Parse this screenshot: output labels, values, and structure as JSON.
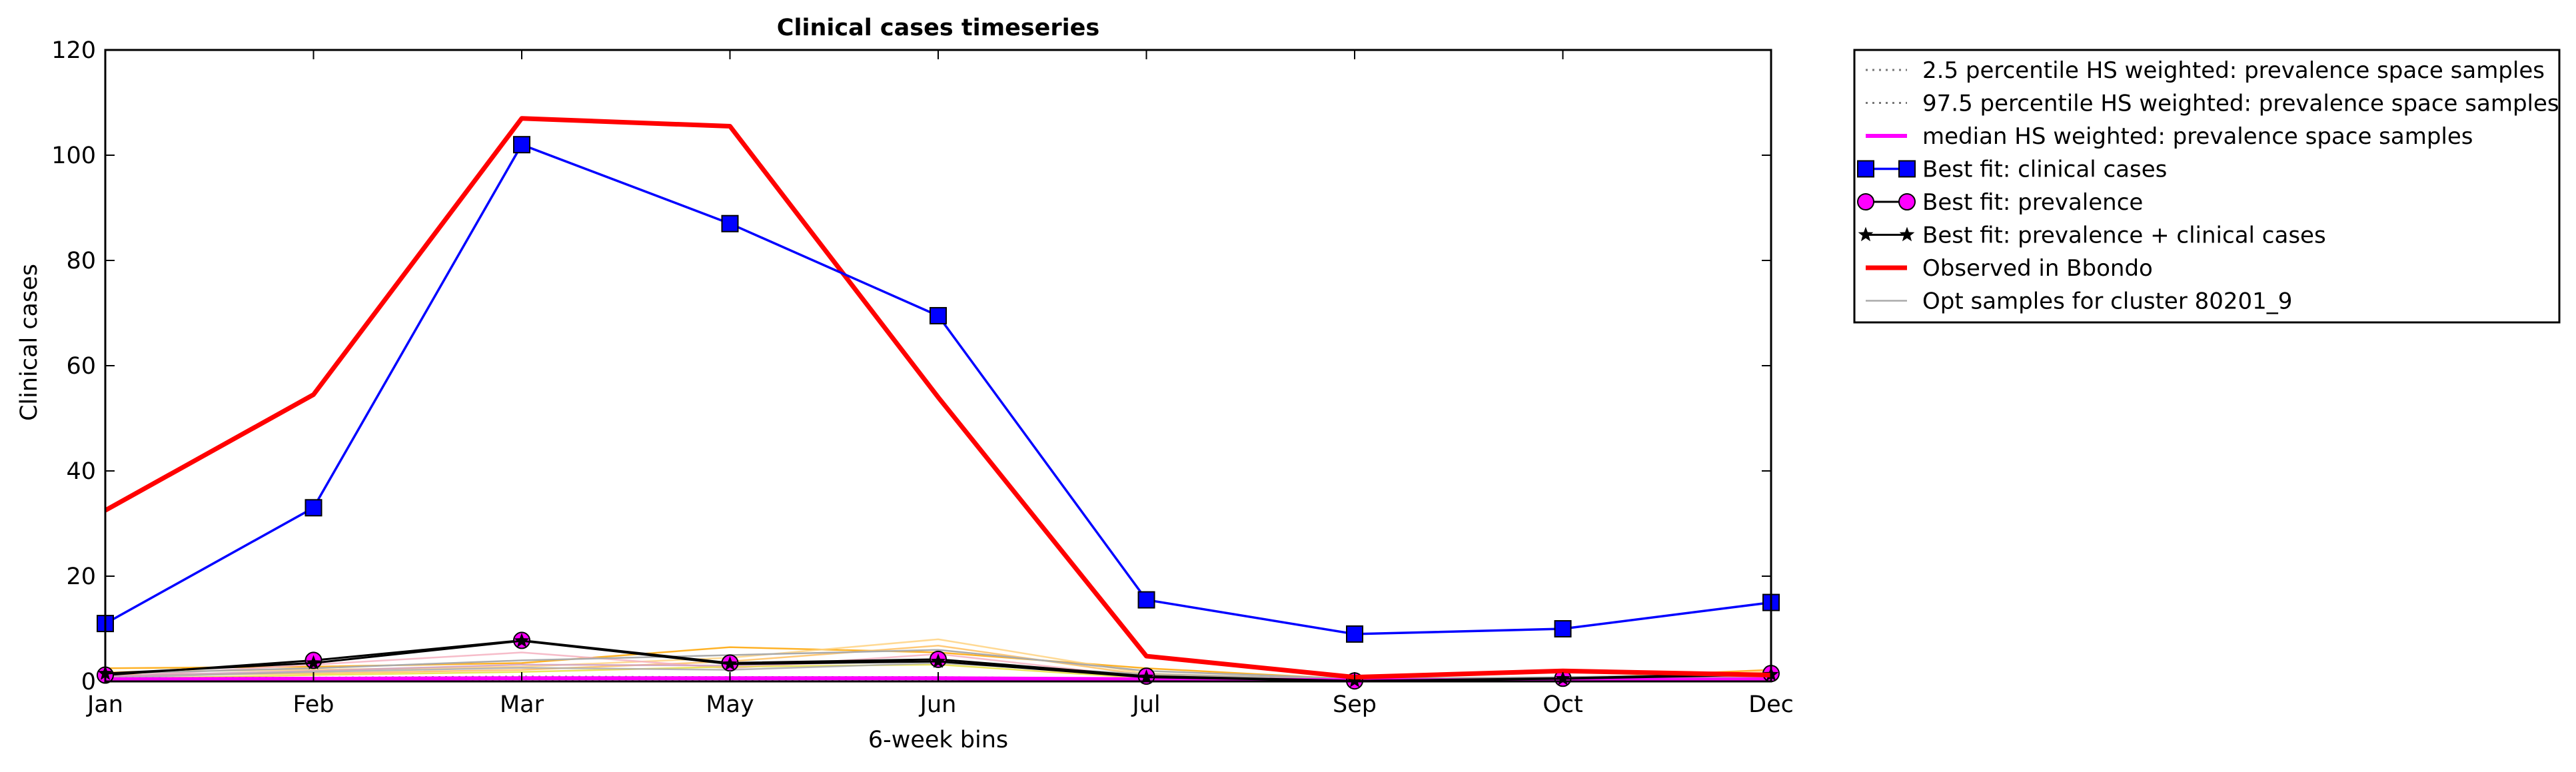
{
  "chart_data": {
    "type": "line",
    "title": "Clinical cases timeseries",
    "xlabel": "6-week bins",
    "ylabel": "Clinical cases",
    "ylim": [
      0,
      120
    ],
    "yticks": [
      0,
      20,
      40,
      60,
      80,
      100,
      120
    ],
    "categories": [
      "Jan",
      "Feb",
      "Mar",
      "May",
      "Jun",
      "Jul",
      "Sep",
      "Oct",
      "Dec"
    ],
    "grid": false,
    "legend_position": "outside-right",
    "colors": {
      "percentile": "#777777",
      "median": "#ff00ff",
      "best_fit_clinical": "#0000ff",
      "best_fit_prevalence": "#ff00ff",
      "best_fit_combined": "#000000",
      "observed": "#ff0000",
      "opt_samples": "#aaaaaa"
    },
    "series": [
      {
        "name": "2.5 percentile HS weighted: prevalence space samples",
        "style": "dotted",
        "values": [
          0.3,
          0.3,
          0.4,
          0.3,
          0.3,
          0.2,
          0.1,
          0.1,
          0.2
        ]
      },
      {
        "name": "97.5 percentile HS weighted: prevalence space samples",
        "style": "dotted",
        "values": [
          0.6,
          0.7,
          0.9,
          0.8,
          0.8,
          0.5,
          0.3,
          0.3,
          0.5
        ]
      },
      {
        "name": "median HS weighted: prevalence space samples",
        "style": "median",
        "values": [
          0.4,
          0.5,
          0.6,
          0.6,
          0.6,
          0.4,
          0.2,
          0.2,
          0.4
        ]
      },
      {
        "name": "Best fit: clinical cases",
        "style": "square",
        "values": [
          11,
          33,
          102,
          87,
          69.5,
          15.5,
          9,
          10,
          15
        ]
      },
      {
        "name": "Best fit: prevalence",
        "style": "circle",
        "values": [
          1.2,
          4,
          7.8,
          3.5,
          4.2,
          1,
          0.1,
          0.6,
          1.5
        ]
      },
      {
        "name": "Best fit: prevalence + clinical cases",
        "style": "star",
        "values": [
          1.5,
          3.5,
          7.7,
          3.3,
          3.8,
          0.8,
          0.1,
          0.5,
          1.3
        ]
      },
      {
        "name": "Observed in Bbondo",
        "style": "observed",
        "values": [
          32.5,
          54.5,
          107,
          105.5,
          54,
          4.8,
          0.8,
          2,
          1.2
        ]
      },
      {
        "name": "Opt samples for cluster 80201_9",
        "style": "thin",
        "values": [
          1.5,
          2.5,
          4,
          5,
          6,
          2,
          0.5,
          0.8,
          1.5
        ]
      }
    ],
    "opt_sample_lines": [
      {
        "color": "#ffa500",
        "values": [
          2.5,
          2.8,
          3.5,
          6.5,
          5.5,
          2.5,
          0.4,
          0.5,
          2.2
        ]
      },
      {
        "color": "#ffd280",
        "values": [
          1.8,
          2.2,
          2.8,
          4.5,
          8,
          1.5,
          0.3,
          0.4,
          1.8
        ]
      },
      {
        "color": "#ffc060",
        "values": [
          1.2,
          1.5,
          2.2,
          3.8,
          6.8,
          1.2,
          0.2,
          0.3,
          1.2
        ]
      },
      {
        "color": "#f5b0c0",
        "values": [
          0.8,
          3.2,
          5.5,
          2.5,
          5.2,
          0.8,
          0.2,
          0.6,
          1.0
        ]
      },
      {
        "color": "#e8e040",
        "values": [
          0.5,
          1.2,
          1.8,
          2.8,
          3.2,
          0.6,
          0.1,
          0.2,
          0.8
        ]
      },
      {
        "color": "#d0a0c0",
        "values": [
          1.0,
          2.0,
          3.2,
          3.0,
          4.0,
          1.0,
          0.3,
          0.4,
          1.0
        ]
      },
      {
        "color": "#aaaaaa",
        "values": [
          0.7,
          1.8,
          2.6,
          2.2,
          3.5,
          1.4,
          0.4,
          0.5,
          0.9
        ]
      }
    ]
  }
}
